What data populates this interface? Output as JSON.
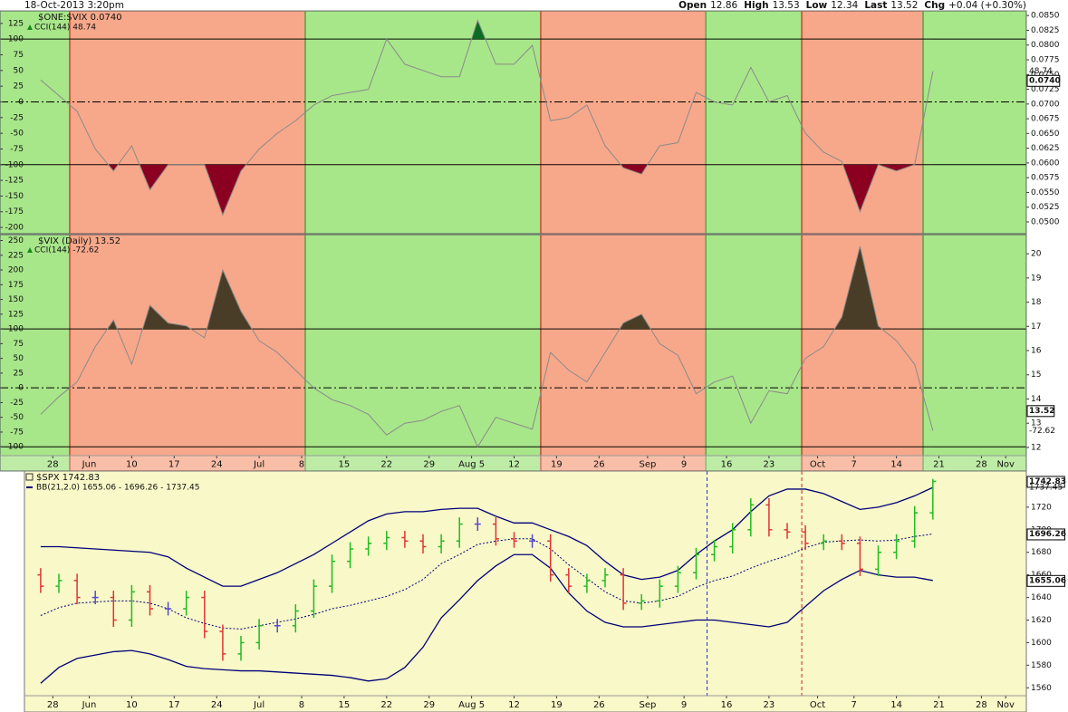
{
  "header": {
    "date": "18-Oct-2013 3:20pm",
    "quote": [
      {
        "label": "Open",
        "value": 12.86
      },
      {
        "label": "High",
        "value": 13.53
      },
      {
        "label": "Low",
        "value": 12.34
      },
      {
        "label": "Last",
        "value": 13.52
      },
      {
        "label": "Chg",
        "value": "+0.04 (+0.30%)"
      }
    ]
  },
  "chart_data": [
    {
      "type": "line",
      "legend": [
        "$ONE:$VIX 0.0740",
        "CCI(144) 48.74"
      ],
      "color": "#8a8a8a",
      "x": [
        146,
        149,
        152,
        155,
        158,
        161,
        164,
        167,
        170,
        173,
        176,
        179,
        182,
        185,
        188,
        191,
        194,
        197,
        200,
        203,
        206,
        209,
        212,
        215,
        218,
        221,
        224,
        227,
        230,
        233,
        236,
        239,
        242,
        245,
        248,
        251,
        254,
        257,
        260,
        263,
        266,
        269,
        272,
        275,
        278,
        281,
        284,
        287,
        290,
        293
      ],
      "values": [
        35,
        10,
        -15,
        -75,
        -110,
        -70,
        -140,
        -100,
        -100,
        -100,
        -180,
        -110,
        -75,
        -50,
        -30,
        -5,
        10,
        15,
        20,
        100,
        60,
        50,
        40,
        40,
        130,
        60,
        60,
        90,
        -30,
        -25,
        -5,
        -70,
        -105,
        -115,
        -70,
        -65,
        15,
        0,
        -5,
        55,
        0,
        10,
        -50,
        -80,
        -95,
        -175,
        -100,
        -110,
        -100,
        48.74
      ],
      "xlim": [
        139.3,
        308.4
      ],
      "ylim": [
        -210,
        145
      ],
      "yticks": [
        125,
        100,
        75,
        50,
        25,
        0,
        -25,
        -50,
        -75,
        -100,
        -125,
        -150,
        -175,
        -200
      ],
      "y2lim": [
        0.048,
        0.0858
      ],
      "y2ticks": [
        {
          "value": 0.085,
          "label": "0.0850"
        },
        {
          "value": 0.0825,
          "label": "0.0825"
        },
        {
          "value": 0.08,
          "label": "0.0800"
        },
        {
          "value": 0.0775,
          "label": "0.0775"
        },
        {
          "value": 0.075,
          "label": "0.0750"
        },
        {
          "value": 0.0725,
          "label": "0.0725"
        },
        {
          "value": 0.07,
          "label": "0.0700"
        },
        {
          "value": 0.0675,
          "label": "0.0675"
        },
        {
          "value": 0.065,
          "label": "0.0650"
        },
        {
          "value": 0.0625,
          "label": "0.0625"
        },
        {
          "value": 0.06,
          "label": "0.0600"
        },
        {
          "value": 0.0575,
          "label": "0.0575"
        },
        {
          "value": 0.055,
          "label": "0.0550"
        },
        {
          "value": 0.0525,
          "label": "0.0525"
        },
        {
          "value": 0.05,
          "label": "0.0500"
        }
      ],
      "reference_lines": [
        {
          "value": 100,
          "style": "solid"
        },
        {
          "value": 0,
          "style": "dashdot"
        },
        {
          "value": -100,
          "style": "solid"
        }
      ],
      "fills": [
        {
          "threshold": 100,
          "side": "above",
          "color": "#0b6b22"
        },
        {
          "threshold": -100,
          "side": "below",
          "color": "#8b0021"
        }
      ],
      "markers": [
        {
          "value": 48.74,
          "label": "48.74",
          "axis": "y",
          "boxed": false
        },
        {
          "value": 0.074,
          "label": "0.0740",
          "axis": "y2",
          "boxed": true
        }
      ],
      "bands": [
        {
          "start": 139.3,
          "end": 150.8,
          "color": "#a8e68a",
          "edge": "#4cb04c"
        },
        {
          "start": 150.8,
          "end": 189.6,
          "color": "#f7a88a",
          "edge": "#d04a3a"
        },
        {
          "start": 189.6,
          "end": 228.4,
          "color": "#a8e68a",
          "edge": "#4cb04c"
        },
        {
          "start": 228.4,
          "end": 255.6,
          "color": "#f7a88a",
          "edge": "#d04a3a"
        },
        {
          "start": 255.6,
          "end": 271.4,
          "color": "#a8e68a",
          "edge": "#4cb04c"
        },
        {
          "start": 271.4,
          "end": 291.4,
          "color": "#f7a88a",
          "edge": "#d04a3a"
        },
        {
          "start": 291.4,
          "end": 308.4,
          "color": "#a8e68a",
          "edge": "#4cb04c"
        }
      ]
    },
    {
      "type": "line",
      "legend": [
        "$VIX (Daily) 13.52",
        "CCI(144) -72.62"
      ],
      "color": "#8a8a8a",
      "x": [
        146,
        149,
        152,
        155,
        158,
        161,
        164,
        167,
        170,
        173,
        176,
        179,
        182,
        185,
        188,
        191,
        194,
        197,
        200,
        203,
        206,
        209,
        212,
        215,
        218,
        221,
        224,
        227,
        230,
        233,
        236,
        239,
        242,
        245,
        248,
        251,
        254,
        257,
        260,
        263,
        266,
        269,
        272,
        275,
        278,
        281,
        284,
        287,
        290,
        293
      ],
      "values": [
        -45,
        -15,
        10,
        70,
        115,
        40,
        140,
        110,
        105,
        85,
        200,
        130,
        80,
        60,
        30,
        0,
        -20,
        -30,
        -45,
        -80,
        -60,
        -55,
        -40,
        -30,
        -100,
        -50,
        -60,
        -70,
        60,
        30,
        10,
        60,
        110,
        125,
        75,
        55,
        -10,
        10,
        20,
        -60,
        -5,
        -10,
        50,
        70,
        120,
        240,
        105,
        80,
        40,
        -72.62
      ],
      "xlim": [
        139.3,
        308.4
      ],
      "ylim": [
        -115,
        260
      ],
      "yticks": [
        250,
        225,
        200,
        175,
        150,
        125,
        100,
        75,
        50,
        25,
        0,
        -25,
        -50,
        -75,
        -100
      ],
      "y2lim": [
        11.66,
        20.79
      ],
      "y2ticks": [
        12,
        13,
        14,
        15,
        16,
        17,
        18,
        19,
        20
      ],
      "reference_lines": [
        {
          "value": 100,
          "style": "solid"
        },
        {
          "value": 0,
          "style": "dashdot"
        },
        {
          "value": -100,
          "style": "solid"
        }
      ],
      "fills": [
        {
          "threshold": 100,
          "side": "above",
          "color": "#4a3d27"
        },
        {
          "threshold": -100,
          "side": "below",
          "color": "#2e2e2e"
        }
      ],
      "markers": [
        {
          "value": 13.52,
          "label": "13.52",
          "axis": "y2",
          "boxed": true
        },
        {
          "value": -72.62,
          "label": "-72.62",
          "axis": "y",
          "boxed": false
        }
      ],
      "xticks": [
        {
          "value": 148,
          "label": "28"
        },
        {
          "value": 154,
          "label": "Jun"
        },
        {
          "value": 161,
          "label": "10"
        },
        {
          "value": 168,
          "label": "17"
        },
        {
          "value": 175,
          "label": "24"
        },
        {
          "value": 182,
          "label": "Jul"
        },
        {
          "value": 189,
          "label": "8"
        },
        {
          "value": 196,
          "label": "15"
        },
        {
          "value": 203,
          "label": "22"
        },
        {
          "value": 210,
          "label": "29"
        },
        {
          "value": 217,
          "label": "Aug 5"
        },
        {
          "value": 224,
          "label": "12"
        },
        {
          "value": 231,
          "label": "19"
        },
        {
          "value": 238,
          "label": "26"
        },
        {
          "value": 246,
          "label": "Sep"
        },
        {
          "value": 252,
          "label": "9"
        },
        {
          "value": 259,
          "label": "16"
        },
        {
          "value": 266,
          "label": "23"
        },
        {
          "value": 274,
          "label": "Oct"
        },
        {
          "value": 280,
          "label": "7"
        },
        {
          "value": 287,
          "label": "14"
        },
        {
          "value": 294,
          "label": "21"
        },
        {
          "value": 301,
          "label": "28"
        },
        {
          "value": 305,
          "label": "Nov"
        }
      ]
    },
    {
      "type": "ohlc",
      "legend": [
        "$SPX 1742.83",
        "BB(21,2.0) 1655.06 - 1696.26 - 1737.45"
      ],
      "background": "#f8f8c8",
      "colors": {
        "up": "#22bb22",
        "down": "#e03535",
        "unchanged": "#5a48cc"
      },
      "x": [
        146,
        149,
        152,
        155,
        158,
        161,
        164,
        167,
        170,
        173,
        176,
        179,
        182,
        185,
        188,
        191,
        194,
        197,
        200,
        203,
        206,
        209,
        212,
        215,
        218,
        221,
        224,
        227,
        230,
        233,
        236,
        239,
        242,
        245,
        248,
        251,
        254,
        257,
        260,
        263,
        266,
        269,
        272,
        275,
        278,
        281,
        284,
        287,
        290,
        293
      ],
      "open": [
        1660,
        1650,
        1655,
        1640,
        1640,
        1620,
        1645,
        1630,
        1630,
        1640,
        1610,
        1590,
        1600,
        1615,
        1615,
        1628,
        1650,
        1672,
        1683,
        1688,
        1693,
        1690,
        1685,
        1690,
        1705,
        1705,
        1692,
        1690,
        1690,
        1660,
        1650,
        1655,
        1660,
        1635,
        1637,
        1650,
        1662,
        1678,
        1685,
        1700,
        1722,
        1700,
        1698,
        1688,
        1690,
        1688,
        1665,
        1680,
        1690,
        1715
      ],
      "high": [
        1666,
        1661,
        1661,
        1646,
        1646,
        1651,
        1651,
        1636,
        1646,
        1646,
        1616,
        1606,
        1621,
        1621,
        1634,
        1656,
        1678,
        1689,
        1694,
        1699,
        1699,
        1696,
        1696,
        1711,
        1711,
        1711,
        1698,
        1696,
        1696,
        1666,
        1661,
        1666,
        1666,
        1643,
        1656,
        1668,
        1684,
        1691,
        1706,
        1728,
        1728,
        1706,
        1704,
        1696,
        1696,
        1694,
        1686,
        1696,
        1721,
        1745
      ],
      "low": [
        1644,
        1644,
        1634,
        1634,
        1614,
        1614,
        1624,
        1624,
        1624,
        1604,
        1584,
        1584,
        1594,
        1609,
        1609,
        1622,
        1644,
        1666,
        1677,
        1682,
        1684,
        1679,
        1679,
        1684,
        1699,
        1686,
        1684,
        1684,
        1654,
        1644,
        1644,
        1649,
        1629,
        1629,
        1631,
        1644,
        1656,
        1672,
        1679,
        1694,
        1694,
        1692,
        1682,
        1682,
        1682,
        1659,
        1659,
        1674,
        1684,
        1709
      ],
      "close": [
        1650,
        1655,
        1640,
        1640,
        1620,
        1645,
        1630,
        1630,
        1640,
        1610,
        1590,
        1600,
        1615,
        1615,
        1628,
        1650,
        1672,
        1683,
        1688,
        1693,
        1690,
        1685,
        1690,
        1705,
        1705,
        1692,
        1690,
        1690,
        1660,
        1650,
        1655,
        1660,
        1635,
        1637,
        1650,
        1662,
        1678,
        1685,
        1700,
        1722,
        1700,
        1698,
        1688,
        1690,
        1688,
        1665,
        1680,
        1690,
        1715,
        1742.83
      ],
      "bollinger": {
        "color": "#00007a",
        "upper": [
          1685,
          1685,
          1684,
          1683,
          1682,
          1681,
          1680,
          1676,
          1666,
          1658,
          1650,
          1650,
          1656,
          1662,
          1670,
          1678,
          1688,
          1698,
          1708,
          1714,
          1716,
          1716,
          1718,
          1719,
          1719,
          1712,
          1706,
          1706,
          1700,
          1694,
          1686,
          1672,
          1660,
          1656,
          1658,
          1664,
          1678,
          1690,
          1700,
          1716,
          1730,
          1736,
          1736,
          1732,
          1725,
          1718,
          1720,
          1724,
          1730,
          1737.45
        ],
        "middle": [
          1624,
          1631,
          1635,
          1636,
          1637,
          1637,
          1635,
          1630,
          1622,
          1617,
          1613,
          1612,
          1615,
          1618,
          1621,
          1625,
          1630,
          1633,
          1637,
          1641,
          1647,
          1656,
          1670,
          1678,
          1687,
          1690,
          1692,
          1692,
          1683,
          1669,
          1657,
          1645,
          1637,
          1635,
          1637,
          1641,
          1649,
          1655,
          1659,
          1666,
          1672,
          1677,
          1684,
          1689,
          1690,
          1691,
          1690,
          1691,
          1694,
          1696.26
        ],
        "lower": [
          1564,
          1578,
          1586,
          1589,
          1592,
          1593,
          1590,
          1585,
          1579,
          1577,
          1576,
          1575,
          1575,
          1574,
          1573,
          1572,
          1571,
          1569,
          1566,
          1568,
          1578,
          1596,
          1622,
          1638,
          1655,
          1668,
          1678,
          1678,
          1666,
          1644,
          1628,
          1618,
          1614,
          1614,
          1616,
          1618,
          1620,
          1620,
          1618,
          1616,
          1614,
          1618,
          1632,
          1646,
          1656,
          1664,
          1660,
          1658,
          1658,
          1655.06
        ]
      },
      "vlines": [
        {
          "x": 255.8,
          "color": "#1a2fd0"
        },
        {
          "x": 271.4,
          "color": "#d02020"
        }
      ],
      "xlim": [
        139.3,
        308.4
      ],
      "ylim": [
        1553,
        1752
      ],
      "yticks": [
        1560,
        1580,
        1600,
        1620,
        1640,
        1660,
        1680,
        1700,
        1720
      ],
      "markers": [
        {
          "value": 1742.83,
          "label": "1742.83",
          "axis": "y",
          "boxed": true
        },
        {
          "value": 1737.45,
          "label": "1737.45",
          "axis": "y",
          "boxed": false
        },
        {
          "value": 1696.26,
          "label": "1696.26",
          "axis": "y",
          "boxed": true
        },
        {
          "value": 1655.06,
          "label": "1655.06",
          "axis": "y",
          "boxed": true
        }
      ],
      "xticks": [
        {
          "value": 148,
          "label": "28"
        },
        {
          "value": 154,
          "label": "Jun"
        },
        {
          "value": 161,
          "label": "10"
        },
        {
          "value": 168,
          "label": "17"
        },
        {
          "value": 175,
          "label": "24"
        },
        {
          "value": 182,
          "label": "Jul"
        },
        {
          "value": 189,
          "label": "8"
        },
        {
          "value": 196,
          "label": "15"
        },
        {
          "value": 203,
          "label": "22"
        },
        {
          "value": 210,
          "label": "29"
        },
        {
          "value": 217,
          "label": "Aug 5"
        },
        {
          "value": 224,
          "label": "12"
        },
        {
          "value": 231,
          "label": "19"
        },
        {
          "value": 238,
          "label": "26"
        },
        {
          "value": 246,
          "label": "Sep"
        },
        {
          "value": 252,
          "label": "9"
        },
        {
          "value": 259,
          "label": "16"
        },
        {
          "value": 266,
          "label": "23"
        },
        {
          "value": 274,
          "label": "Oct"
        },
        {
          "value": 280,
          "label": "7"
        },
        {
          "value": 287,
          "label": "14"
        },
        {
          "value": 294,
          "label": "21"
        },
        {
          "value": 301,
          "label": "28"
        },
        {
          "value": 305,
          "label": "Nov"
        }
      ]
    }
  ]
}
